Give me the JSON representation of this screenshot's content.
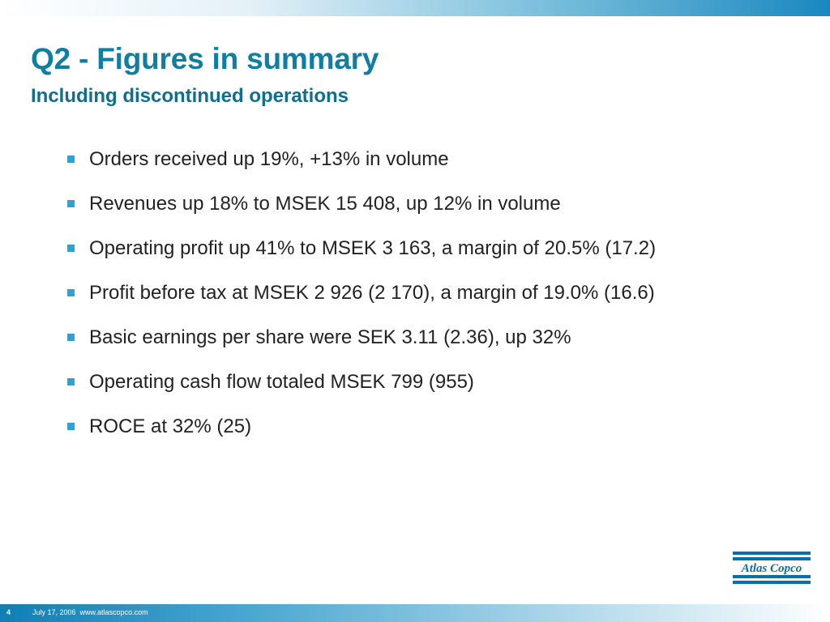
{
  "slide": {
    "title": "Q2 - Figures in summary",
    "subtitle": "Including discontinued operations",
    "bullets": [
      "Orders received up 19%, +13% in volume",
      "Revenues up 18% to MSEK 15 408, up 12% in volume",
      "Operating profit up 41% to MSEK 3 163, a margin of 20.5% (17.2)",
      "Profit before tax at MSEK 2 926 (2 170), a margin of 19.0% (16.6)",
      "Basic earnings per share were SEK 3.11 (2.36), up 32%",
      "Operating cash flow totaled MSEK 799 (955)",
      "ROCE at 32% (25)"
    ]
  },
  "logo": {
    "text": "Atlas Copco",
    "color": "#0a6fa8"
  },
  "footer": {
    "page_number": "4",
    "text": "July 17, 2006  www.atlascopco.com"
  },
  "colors": {
    "title": "#0f7ea3",
    "bullet_marker": "#2aa4d8",
    "body_text": "#222222"
  }
}
